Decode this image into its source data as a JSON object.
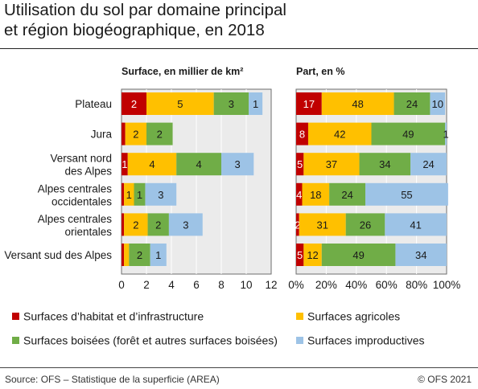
{
  "header": {
    "title_line1": "Utilisation du sol par domaine principal",
    "title_line2": "et région biogéographique, en 2018"
  },
  "footer": {
    "source": "Source: OFS – Statistique de la superficie (AREA)",
    "copyright": "© OFS 2021"
  },
  "colors": {
    "habitat": "#c00000",
    "agricole": "#ffc000",
    "boise": "#70ad47",
    "improductive": "#9dc3e6",
    "panel_bg": "#ebebeb",
    "grid": "#ffffff"
  },
  "chart_data": [
    {
      "type": "bar",
      "orientation": "horizontal",
      "stacked": true,
      "subtitle": "Surface, en millier de km²",
      "categories": [
        "Plateau",
        "Jura",
        "Versant nord\ndes Alpes",
        "Alpes centrales\noccidentales",
        "Alpes centrales\norientales",
        "Versant sud des Alpes"
      ],
      "series": [
        {
          "name": "Surfaces d’habitat et d’infrastructure",
          "values": [
            2.0,
            0.3,
            0.5,
            0.2,
            0.2,
            0.2
          ]
        },
        {
          "name": "Surfaces agricoles",
          "values": [
            5.4,
            1.7,
            3.9,
            0.8,
            1.9,
            0.4
          ]
        },
        {
          "name": "Surfaces boisées (forêt et autres surfaces boisées)",
          "values": [
            2.8,
            2.1,
            3.6,
            0.9,
            1.7,
            1.7
          ]
        },
        {
          "name": "Surfaces improductives",
          "values": [
            1.1,
            0.0,
            2.6,
            2.5,
            2.7,
            1.3
          ]
        }
      ],
      "data_labels": [
        [
          "2",
          "5",
          "3",
          "1"
        ],
        [
          "",
          "2",
          "2",
          ""
        ],
        [
          "1",
          "4",
          "4",
          "3"
        ],
        [
          "",
          "1",
          "1",
          "3"
        ],
        [
          "",
          "2",
          "2",
          "3"
        ],
        [
          "",
          "",
          "2",
          "1"
        ]
      ],
      "xlim": [
        0,
        12
      ],
      "xticks": [
        "0",
        "2",
        "4",
        "6",
        "8",
        "10",
        "12"
      ],
      "grid": true
    },
    {
      "type": "bar",
      "orientation": "horizontal",
      "stacked": true,
      "subtitle": "Part, en %",
      "categories": [
        "Plateau",
        "Jura",
        "Versant nord\ndes Alpes",
        "Alpes centrales\noccidentales",
        "Alpes centrales\norientales",
        "Versant sud des Alpes"
      ],
      "series": [
        {
          "name": "Surfaces d’habitat et d’infrastructure",
          "values": [
            17,
            8,
            5,
            4,
            2,
            5
          ]
        },
        {
          "name": "Surfaces agricoles",
          "values": [
            48,
            42,
            37,
            18,
            31,
            12
          ]
        },
        {
          "name": "Surfaces boisées (forêt et autres surfaces boisées)",
          "values": [
            24,
            49,
            34,
            24,
            26,
            49
          ]
        },
        {
          "name": "Surfaces improductives",
          "values": [
            10,
            1,
            24,
            55,
            41,
            34
          ]
        }
      ],
      "data_labels": [
        [
          "17",
          "48",
          "24",
          "10"
        ],
        [
          "8",
          "42",
          "49",
          "1"
        ],
        [
          "5",
          "37",
          "34",
          "24"
        ],
        [
          "4",
          "18",
          "24",
          "55"
        ],
        [
          "2",
          "31",
          "26",
          "41"
        ],
        [
          "5",
          "12",
          "49",
          "34"
        ]
      ],
      "xlim": [
        0,
        100
      ],
      "xticks": [
        "0%",
        "20%",
        "40%",
        "60%",
        "80%",
        "100%"
      ],
      "grid": true
    }
  ],
  "legend": {
    "placement": "bottom",
    "items": [
      {
        "label": "Surfaces d’habitat et d’infrastructure",
        "color": "#c00000"
      },
      {
        "label": "Surfaces agricoles",
        "color": "#ffc000"
      },
      {
        "label": "Surfaces boisées (forêt et autres surfaces boisées)",
        "color": "#70ad47"
      },
      {
        "label": "Surfaces improductives",
        "color": "#9dc3e6"
      }
    ]
  }
}
